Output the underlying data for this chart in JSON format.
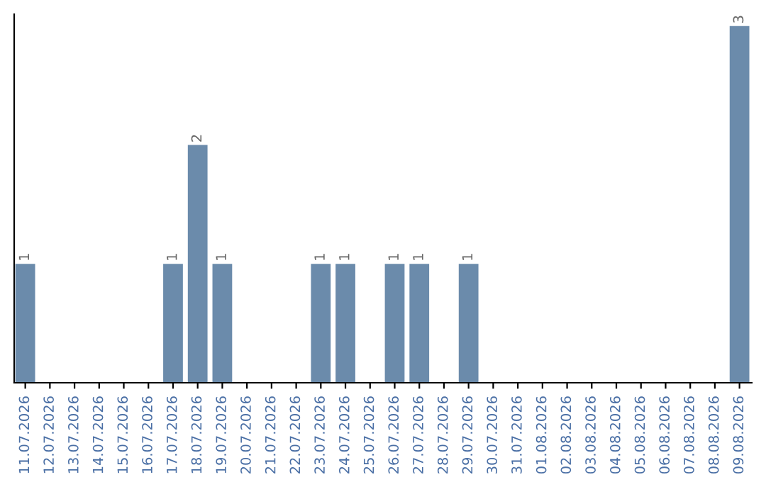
{
  "chart_data": {
    "type": "bar",
    "categories": [
      "11.07.2026",
      "12.07.2026",
      "13.07.2026",
      "14.07.2026",
      "15.07.2026",
      "16.07.2026",
      "17.07.2026",
      "18.07.2026",
      "19.07.2026",
      "20.07.2026",
      "21.07.2026",
      "22.07.2026",
      "23.07.2026",
      "24.07.2026",
      "25.07.2026",
      "26.07.2026",
      "27.07.2026",
      "28.07.2026",
      "29.07.2026",
      "30.07.2026",
      "31.07.2026",
      "01.08.2026",
      "02.08.2026",
      "03.08.2026",
      "04.08.2026",
      "05.08.2026",
      "06.08.2026",
      "07.08.2026",
      "08.08.2026",
      "09.08.2026"
    ],
    "values": [
      1,
      0,
      0,
      0,
      0,
      0,
      1,
      2,
      1,
      0,
      0,
      0,
      1,
      1,
      0,
      1,
      1,
      0,
      1,
      0,
      0,
      0,
      0,
      0,
      0,
      0,
      0,
      0,
      0,
      3
    ],
    "value_labels": [
      "1",
      null,
      null,
      null,
      null,
      null,
      "1",
      "2",
      "1",
      null,
      null,
      null,
      "1",
      "1",
      null,
      "1",
      "1",
      null,
      "1",
      null,
      null,
      null,
      null,
      null,
      null,
      null,
      null,
      null,
      null,
      "3"
    ],
    "color": "#6b8bab",
    "ylim": [
      0,
      3.1
    ],
    "tick_labels": "x",
    "grid": false,
    "legend": false
  }
}
